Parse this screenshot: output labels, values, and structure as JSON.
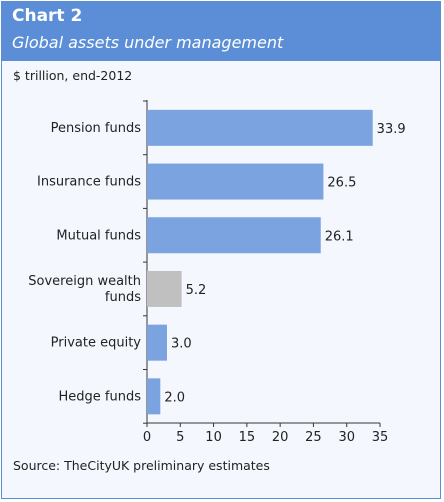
{
  "title": "Chart 2",
  "subtitle": "Global assets under management",
  "units_note": "$ trillion, end-2012",
  "source": "Source: TheCityUK preliminary estimates",
  "colors": {
    "header": "#5b8ed6",
    "bar": "#7aa3e0",
    "bar_highlight": "#c0c0c0",
    "background": "#f4f8fe"
  },
  "chart_data": {
    "type": "bar",
    "orientation": "horizontal",
    "categories": [
      [
        "Pension funds"
      ],
      [
        "Insurance funds"
      ],
      [
        "Mutual funds"
      ],
      [
        "Sovereign wealth",
        "funds"
      ],
      [
        "Private equity"
      ],
      [
        "Hedge funds"
      ]
    ],
    "values": [
      33.9,
      26.5,
      26.1,
      5.2,
      3.0,
      2.0
    ],
    "value_labels": [
      "33.9",
      "26.5",
      "26.1",
      "5.2",
      "3.0",
      "2.0"
    ],
    "highlight_index": 3,
    "xlim": [
      0,
      35
    ],
    "xticks": [
      0,
      5,
      10,
      15,
      20,
      25,
      30,
      35
    ],
    "grid": false
  }
}
